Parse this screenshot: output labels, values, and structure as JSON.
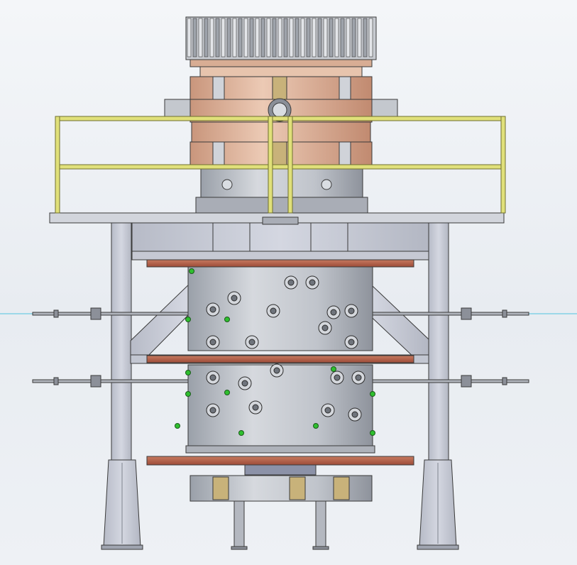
{
  "viewport": {
    "background": "#eef1f5",
    "view_mode": "cad-3d-front-view"
  },
  "colors": {
    "steel": "#b9bdc6",
    "steel_dark": "#8f949d",
    "frame_blue_grey": "#c9cdd8",
    "copper": "#d9b49c",
    "copper_dark": "#b8795f",
    "plate_red": "#b8614a",
    "railing_yellow": "#e0e07a",
    "port_green": "#2fbf2f",
    "brass": "#c8b27a",
    "edge": "#3a3a3a",
    "axis_cyan": "#4fc3e0"
  },
  "model": {
    "parts": [
      "cryo-head",
      "upper-vacuum-chamber",
      "safety-railing",
      "support-deck",
      "support-frame",
      "lower-chamber",
      "bottom-flange-assembly",
      "support-legs",
      "feedthrough-rods"
    ]
  }
}
